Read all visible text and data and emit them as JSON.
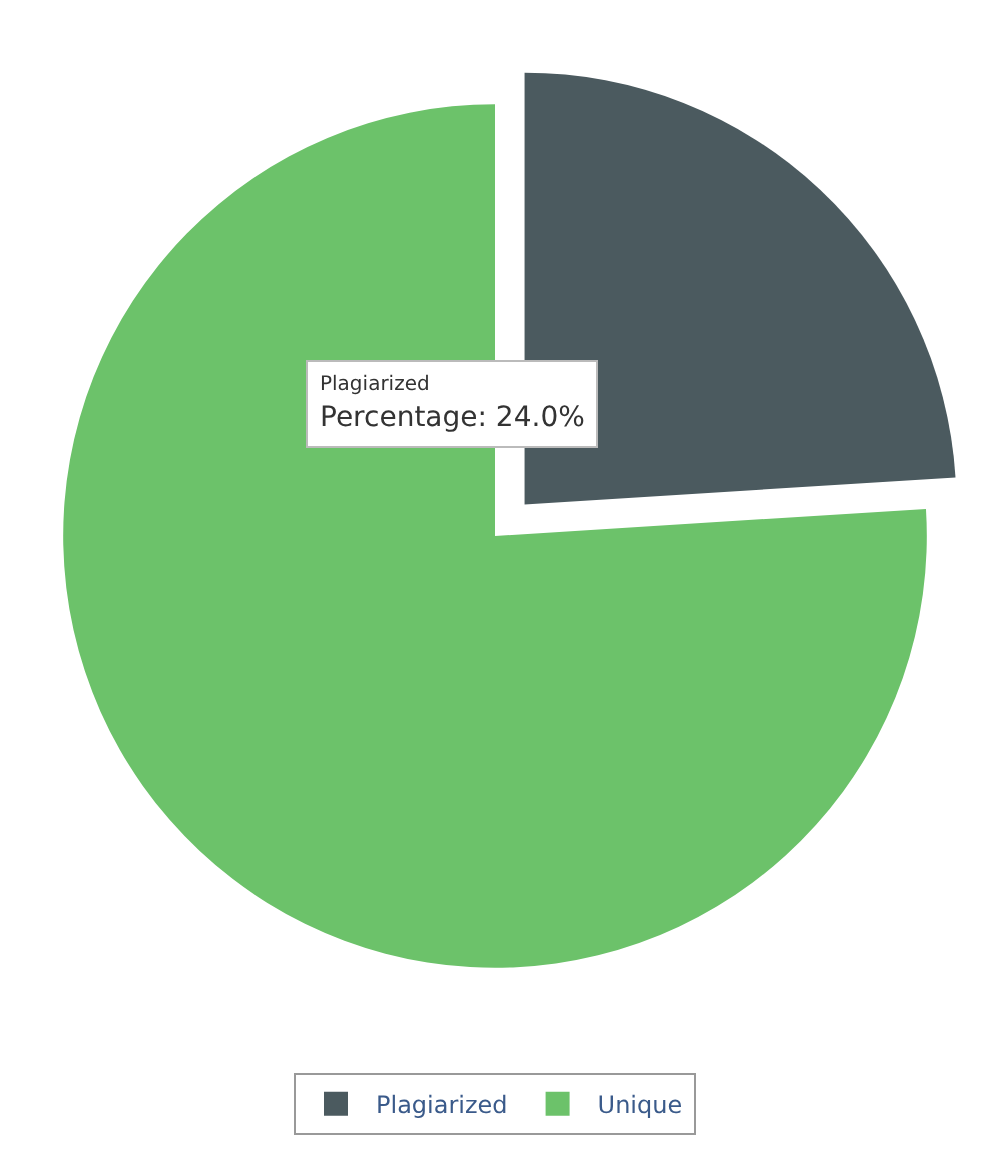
{
  "chart_data": {
    "type": "pie",
    "categories": [
      "Plagiarized",
      "Unique"
    ],
    "values": [
      24,
      76
    ],
    "colors": [
      "#4b5a5f",
      "#6cc26a"
    ],
    "annotations": [
      "Plagiarized",
      "Percentage: 24.0%"
    ],
    "legend": "bottom"
  }
}
